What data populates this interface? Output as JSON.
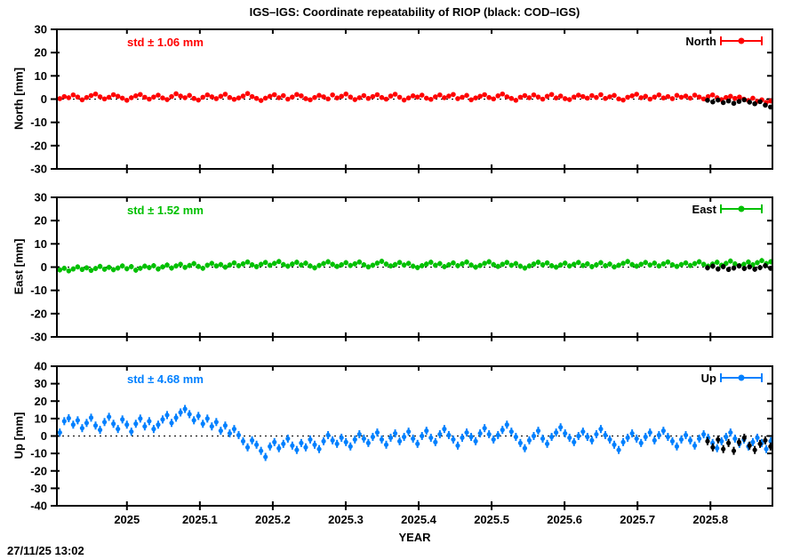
{
  "title": "IGS–IGS: Coordinate repeatability of RIOP (black: COD–IGS)",
  "timestamp": "27/11/25 13:02",
  "xlabel": "YEAR",
  "chart_data": {
    "type": "scatter",
    "grid": false,
    "legend_position": "top-right-inside",
    "x_range": [
      2024.904,
      2025.885
    ],
    "x_tick_labels": [
      "2025",
      "2025.1",
      "2025.2",
      "2025.3",
      "2025.4",
      "2025.5",
      "2025.6",
      "2025.7",
      "2025.8"
    ],
    "black_series_meaning": "COD–IGS",
    "panels": [
      {
        "name": "North",
        "ylabel": "North [mm]",
        "ylim": [
          -30,
          30
        ],
        "yticks": [
          30,
          20,
          10,
          0,
          -10,
          -20,
          -30
        ],
        "std_label": "std ± 1.06 mm",
        "legend": "North",
        "color": "#ff0000",
        "black_color": "#000000",
        "ebar_mm": 0.9,
        "marker_r": 2.8,
        "series_main": {
          "x0": 2024.908,
          "dx": 0.00613,
          "y": [
            0.2,
            1.1,
            0.6,
            1.8,
            0.9,
            -0.3,
            0.7,
            1.5,
            2.2,
            1.0,
            0.1,
            0.8,
            1.9,
            1.2,
            0.4,
            -0.5,
            0.6,
            1.4,
            2.0,
            0.8,
            0.0,
            0.9,
            1.7,
            0.5,
            -0.2,
            1.1,
            2.3,
            1.3,
            0.6,
            1.6,
            0.3,
            -0.4,
            0.8,
            1.8,
            1.0,
            0.2,
            1.2,
            2.1,
            0.7,
            -0.1,
            0.5,
            1.3,
            2.4,
            1.1,
            0.3,
            -0.6,
            0.4,
            1.2,
            1.9,
            0.6,
            1.5,
            0.0,
            0.9,
            2.0,
            1.4,
            0.2,
            -0.3,
            0.7,
            1.6,
            1.0,
            0.1,
            1.8,
            0.5,
            1.2,
            2.2,
            0.9,
            -0.2,
            0.6,
            1.5,
            0.3,
            1.1,
            1.9,
            0.7,
            0.0,
            1.3,
            2.1,
            0.8,
            -0.4,
            0.5,
            1.4,
            0.9,
            1.7,
            0.4,
            -0.1,
            1.0,
            1.8,
            0.6,
            1.3,
            2.0,
            0.2,
            0.8,
            1.6,
            -0.3,
            0.5,
            1.2,
            1.9,
            0.7,
            0.1,
            1.4,
            2.2,
            1.0,
            0.3,
            -0.5,
            0.8,
            1.5,
            0.6,
            1.8,
            0.9,
            0.0,
            1.2,
            2.0,
            0.5,
            1.3,
            0.2,
            -0.2,
            0.9,
            1.7,
            1.1,
            0.4,
            1.5,
            0.7,
            1.9,
            0.3,
            1.0,
            1.6,
            0.1,
            -0.4,
            0.8,
            1.4,
            2.1,
            0.6,
            1.2,
            0.0,
            0.9,
            1.8,
            0.5,
            1.1,
            0.2,
            1.6,
            0.8,
            1.3,
            0.4,
            1.7,
            0.9,
            0.1,
            1.1,
            1.8,
            0.6,
            -0.2,
            0.7,
            1.2,
            0.3,
            0.9,
            0.0,
            -0.6,
            0.4,
            -0.9,
            -0.3,
            -1.4,
            -0.8
          ]
        },
        "series_black": {
          "x0": 2025.796,
          "dx": 0.0072,
          "y": [
            -0.5,
            -1.2,
            -0.4,
            -1.5,
            -0.8,
            -1.8,
            -1.0,
            -0.3,
            -1.3,
            -2.0,
            -1.1,
            -2.6,
            -3.4
          ]
        }
      },
      {
        "name": "East",
        "ylabel": "East [mm]",
        "ylim": [
          -30,
          30
        ],
        "yticks": [
          30,
          20,
          10,
          0,
          -10,
          -20,
          -30
        ],
        "std_label": "std ± 1.52 mm",
        "legend": "East",
        "color": "#00c000",
        "black_color": "#000000",
        "ebar_mm": 1.1,
        "marker_r": 2.8,
        "series_main": {
          "x0": 2024.908,
          "dx": 0.00613,
          "y": [
            -1.2,
            -0.5,
            -1.6,
            -0.8,
            0.1,
            -1.0,
            -0.3,
            -1.4,
            -0.6,
            0.3,
            -0.9,
            -0.1,
            -1.1,
            -0.4,
            0.5,
            -0.7,
            0.2,
            -1.3,
            -0.5,
            0.4,
            -0.2,
            0.6,
            -0.8,
            0.1,
            0.9,
            -0.4,
            0.5,
            1.2,
            -0.1,
            0.7,
            1.5,
            0.3,
            -0.5,
            0.8,
            1.6,
            0.5,
            1.1,
            0.0,
            0.9,
            1.8,
            0.6,
            1.4,
            2.2,
            1.0,
            0.2,
            1.2,
            2.0,
            0.8,
            1.6,
            2.4,
            1.1,
            0.4,
            1.3,
            2.1,
            0.9,
            1.7,
            0.5,
            -0.3,
            0.7,
            1.5,
            2.3,
            1.2,
            0.3,
            1.0,
            1.9,
            0.7,
            1.4,
            2.2,
            1.0,
            0.1,
            0.8,
            1.7,
            2.5,
            1.3,
            0.5,
            1.1,
            2.0,
            0.9,
            1.6,
            0.4,
            -0.2,
            0.6,
            1.3,
            2.1,
            0.8,
            1.5,
            0.2,
            1.0,
            1.8,
            0.6,
            1.4,
            2.2,
            0.9,
            0.0,
            0.7,
            1.6,
            2.3,
            1.1,
            0.3,
            1.2,
            2.0,
            0.8,
            1.5,
            0.4,
            -0.4,
            0.5,
            1.3,
            2.1,
            1.0,
            1.8,
            0.6,
            0.0,
            0.9,
            1.7,
            0.5,
            1.2,
            2.0,
            0.7,
            1.4,
            0.2,
            1.0,
            1.9,
            0.6,
            1.3,
            0.1,
            0.8,
            1.6,
            2.4,
            1.1,
            0.4,
            1.2,
            2.0,
            0.9,
            1.7,
            0.5,
            1.4,
            2.2,
            1.0,
            0.3,
            1.1,
            1.8,
            0.7,
            1.5,
            2.3,
            1.2,
            0.4,
            1.3,
            2.1,
            0.8,
            1.6,
            2.6,
            1.4,
            0.6,
            1.2,
            2.2,
            1.0,
            1.9,
            2.8,
            1.5,
            2.3
          ]
        },
        "series_black": {
          "x0": 2025.796,
          "dx": 0.0072,
          "y": [
            -0.3,
            0.4,
            -0.8,
            0.2,
            -1.0,
            -0.4,
            0.5,
            -0.6,
            0.1,
            -0.9,
            -0.2,
            0.6,
            -0.5
          ]
        }
      },
      {
        "name": "Up",
        "ylabel": "Up [mm]",
        "ylim": [
          -40,
          40
        ],
        "yticks": [
          40,
          30,
          20,
          10,
          0,
          -10,
          -20,
          -30,
          -40
        ],
        "std_label": "std ± 4.68 mm",
        "legend": "Up",
        "color": "#0080ff",
        "black_color": "#000000",
        "ebar_mm": 2.3,
        "marker_r": 2.6,
        "series_main": {
          "x0": 2024.908,
          "dx": 0.00613,
          "y": [
            2.0,
            8.5,
            10.2,
            6.5,
            9.0,
            4.5,
            7.5,
            10.5,
            6.0,
            3.5,
            8.0,
            11.0,
            7.0,
            4.0,
            9.5,
            6.5,
            2.5,
            7.0,
            10.0,
            5.5,
            8.5,
            4.0,
            6.5,
            9.5,
            12.0,
            7.5,
            10.5,
            13.5,
            15.5,
            12.5,
            9.0,
            11.5,
            7.0,
            10.0,
            5.5,
            8.0,
            3.0,
            6.0,
            1.5,
            4.0,
            0.5,
            -3.0,
            -6.5,
            -2.5,
            -5.0,
            -8.5,
            -12.0,
            -6.0,
            -3.5,
            -7.0,
            -4.5,
            -1.5,
            -5.5,
            -8.0,
            -4.0,
            -6.5,
            -2.0,
            -5.0,
            -7.5,
            -3.0,
            0.5,
            -2.5,
            -4.5,
            -1.0,
            -3.5,
            -6.0,
            -2.0,
            1.0,
            -1.5,
            -4.0,
            -0.5,
            2.0,
            -2.0,
            -5.0,
            -1.0,
            1.5,
            -3.0,
            -0.5,
            2.5,
            -1.5,
            -4.5,
            0.0,
            3.0,
            -1.0,
            -3.5,
            1.0,
            4.0,
            0.5,
            -2.0,
            -5.5,
            -1.0,
            2.0,
            -0.5,
            -3.0,
            1.5,
            4.5,
            1.0,
            -2.0,
            0.5,
            3.5,
            6.5,
            2.5,
            -0.5,
            -4.0,
            -7.0,
            -2.5,
            0.0,
            3.0,
            -1.5,
            -4.5,
            -0.5,
            2.0,
            5.0,
            1.5,
            -1.0,
            -3.5,
            0.0,
            2.5,
            -0.5,
            -2.5,
            1.0,
            4.0,
            0.5,
            -2.0,
            -5.0,
            -8.0,
            -3.5,
            -1.0,
            1.5,
            -1.5,
            -4.0,
            -0.5,
            2.0,
            -2.5,
            0.5,
            3.0,
            -0.5,
            -3.0,
            -6.0,
            -2.0,
            0.5,
            -2.5,
            -5.5,
            -1.5,
            1.0,
            -1.0,
            -4.0,
            -7.0,
            -3.0,
            -0.5,
            2.0,
            -1.5,
            -4.5,
            -2.0,
            -6.0,
            -3.5,
            -1.0,
            -4.0,
            -7.5,
            -3.0
          ]
        },
        "series_black": {
          "x0": 2025.796,
          "dx": 0.0072,
          "y": [
            -3.0,
            -6.5,
            -2.0,
            -7.5,
            -4.0,
            -8.5,
            -3.5,
            -1.0,
            -5.5,
            -8.0,
            -4.5,
            -2.5,
            -6.0
          ]
        }
      }
    ]
  }
}
